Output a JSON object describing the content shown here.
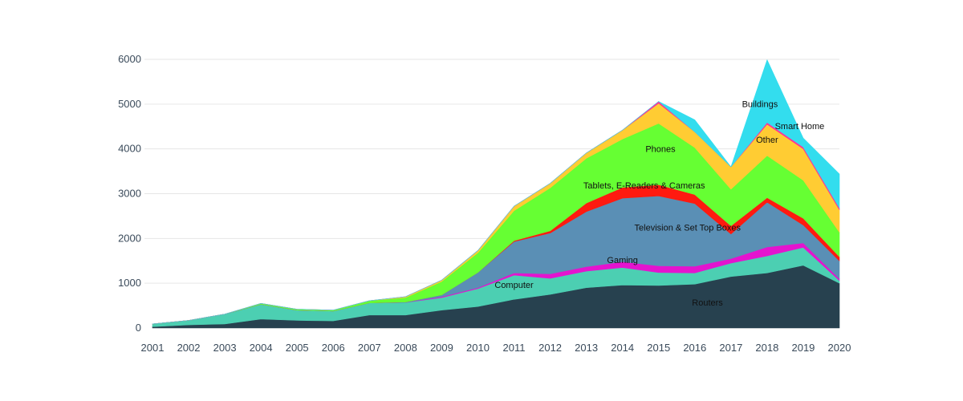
{
  "chart_data": {
    "type": "area",
    "stacked": true,
    "title": "",
    "xlabel": "",
    "ylabel": "",
    "ylim": [
      0,
      6000
    ],
    "yticks": [
      0,
      1000,
      2000,
      3000,
      4000,
      5000,
      6000
    ],
    "grid": true,
    "legend": "none",
    "x": [
      2001,
      2002,
      2003,
      2004,
      2005,
      2006,
      2007,
      2008,
      2009,
      2010,
      2011,
      2012,
      2013,
      2014,
      2015,
      2016,
      2017,
      2018,
      2019,
      2020
    ],
    "series": [
      {
        "name": "Routers",
        "color": "#27414f",
        "values": [
          30,
          70,
          90,
          200,
          170,
          160,
          290,
          290,
          400,
          480,
          640,
          750,
          900,
          960,
          950,
          980,
          1150,
          1230,
          1400,
          1000
        ]
      },
      {
        "name": "Computer",
        "color": "#4ccfb2",
        "values": [
          60,
          100,
          220,
          330,
          230,
          220,
          270,
          280,
          280,
          400,
          540,
          360,
          370,
          390,
          290,
          250,
          300,
          380,
          400,
          60
        ]
      },
      {
        "name": "Gaming",
        "color": "#e414cf",
        "values": [
          0,
          0,
          0,
          0,
          0,
          0,
          0,
          0,
          20,
          20,
          50,
          100,
          100,
          130,
          150,
          150,
          100,
          200,
          100,
          40
        ]
      },
      {
        "name": "Television & Set Top Boxes",
        "color": "#5a8fb5",
        "values": [
          0,
          0,
          0,
          0,
          0,
          0,
          0,
          10,
          40,
          340,
          700,
          910,
          1230,
          1420,
          1560,
          1400,
          550,
          1000,
          400,
          400
        ]
      },
      {
        "name": "Tablets, E-Readers & Cameras",
        "color": "#ff1a10",
        "values": [
          0,
          0,
          0,
          0,
          0,
          0,
          0,
          0,
          0,
          0,
          20,
          50,
          190,
          240,
          250,
          200,
          180,
          100,
          150,
          90
        ]
      },
      {
        "name": "Phones",
        "color": "#66ff33",
        "values": [
          0,
          0,
          0,
          20,
          20,
          20,
          50,
          100,
          300,
          440,
          670,
          960,
          1000,
          1080,
          1370,
          1050,
          820,
          940,
          850,
          550
        ]
      },
      {
        "name": "Other",
        "color": "#ffcc33",
        "values": [
          0,
          0,
          0,
          0,
          0,
          0,
          0,
          20,
          30,
          50,
          100,
          100,
          120,
          200,
          450,
          350,
          500,
          700,
          700,
          500
        ]
      },
      {
        "name": "Smart Home",
        "color": "#ff3399",
        "values": [
          0,
          0,
          0,
          0,
          0,
          0,
          0,
          0,
          0,
          0,
          0,
          0,
          0,
          0,
          40,
          0,
          0,
          40,
          40,
          40
        ]
      },
      {
        "name": "Buildings",
        "color": "#33ddee",
        "values": [
          0,
          0,
          0,
          0,
          0,
          0,
          0,
          0,
          0,
          0,
          0,
          0,
          0,
          0,
          0,
          270,
          0,
          1400,
          200,
          760
        ]
      }
    ],
    "labels": [
      {
        "text": "Routers",
        "series": "Routers",
        "x": 2016.35,
        "y": 500
      },
      {
        "text": "Computer",
        "series": "Computer",
        "x": 2011.0,
        "y": 900
      },
      {
        "text": "Gaming",
        "series": "Gaming",
        "x": 2014.0,
        "y": 1450
      },
      {
        "text": "Television & Set Top Boxes",
        "series": "Television & Set Top Boxes",
        "x": 2015.8,
        "y": 2180
      },
      {
        "text": "Tablets, E-Readers & Cameras",
        "series": "Tablets, E-Readers & Cameras",
        "x": 2014.6,
        "y": 3120
      },
      {
        "text": "Phones",
        "series": "Phones",
        "x": 2015.05,
        "y": 3930
      },
      {
        "text": "Other",
        "series": "Other",
        "x": 2018.0,
        "y": 4140
      },
      {
        "text": "Smart Home",
        "series": "Smart Home",
        "x": 2018.9,
        "y": 4440
      },
      {
        "text": "Buildings",
        "series": "Buildings",
        "x": 2017.8,
        "y": 4930
      }
    ]
  }
}
